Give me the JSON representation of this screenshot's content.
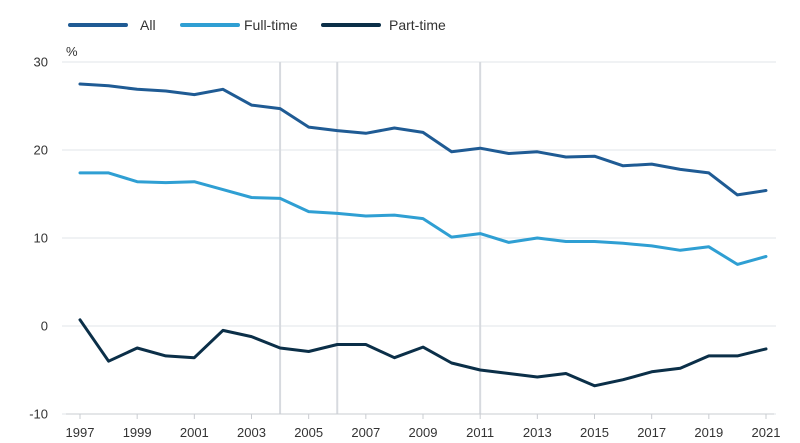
{
  "chart_data": {
    "type": "line",
    "title": "",
    "xlabel": "",
    "ylabel": "%",
    "ylim": [
      -10,
      30
    ],
    "yticks": [
      -10,
      0,
      10,
      20,
      30
    ],
    "xlim": [
      1997,
      2021
    ],
    "xticks": [
      1997,
      1999,
      2001,
      2003,
      2005,
      2007,
      2009,
      2011,
      2013,
      2015,
      2017,
      2019,
      2021
    ],
    "grid": "horizontal",
    "legend_position": "top-left",
    "vertical_markers": [
      2004,
      2006,
      2011
    ],
    "x": [
      1997,
      1998,
      1999,
      2000,
      2001,
      2002,
      2003,
      2004,
      2005,
      2006,
      2007,
      2008,
      2009,
      2010,
      2011,
      2012,
      2013,
      2014,
      2015,
      2016,
      2017,
      2018,
      2019,
      2020,
      2021
    ],
    "series": [
      {
        "name": "All",
        "color": "#1f5b94",
        "values": [
          27.5,
          27.3,
          26.9,
          26.7,
          26.3,
          26.9,
          25.1,
          24.7,
          22.6,
          22.2,
          21.9,
          22.5,
          22.0,
          19.8,
          20.2,
          19.6,
          19.8,
          19.2,
          19.3,
          18.2,
          18.4,
          17.8,
          17.4,
          14.9,
          15.4
        ]
      },
      {
        "name": "Full-time",
        "color": "#2f9fd3",
        "values": [
          17.4,
          17.4,
          16.4,
          16.3,
          16.4,
          15.5,
          14.6,
          14.5,
          13.0,
          12.8,
          12.5,
          12.6,
          12.2,
          10.1,
          10.5,
          9.5,
          10.0,
          9.6,
          9.6,
          9.4,
          9.1,
          8.6,
          9.0,
          7.0,
          7.9
        ]
      },
      {
        "name": "Part-time",
        "color": "#0b2f48",
        "values": [
          0.7,
          -4.0,
          -2.5,
          -3.4,
          -3.6,
          -0.5,
          -1.2,
          -2.5,
          -2.9,
          -2.1,
          -2.1,
          -3.6,
          -2.4,
          -4.2,
          -5.0,
          -5.4,
          -5.8,
          -5.4,
          -6.8,
          -6.1,
          -5.2,
          -4.8,
          -3.4,
          -3.4,
          -2.6
        ]
      }
    ]
  }
}
